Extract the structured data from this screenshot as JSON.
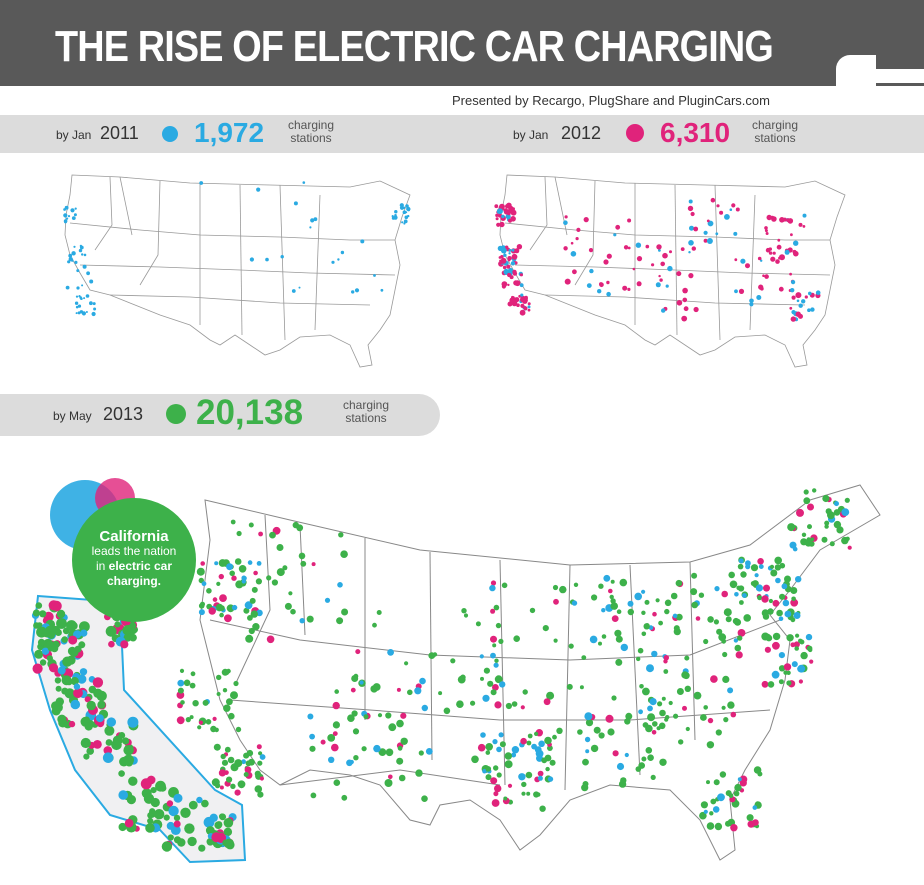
{
  "header": {
    "title": "THE RISE OF ELECTRIC CAR CHARGING",
    "presented_by": "Presented by Recargo, PlugShare and PluginCars.com"
  },
  "panels": [
    {
      "prefix": "by Jan",
      "year": "2011",
      "count": "1,972",
      "unit_line1": "charging",
      "unit_line2": "stations",
      "color": "#2aaae2"
    },
    {
      "prefix": "by Jan",
      "year": "2012",
      "count": "6,310",
      "unit_line1": "charging",
      "unit_line2": "stations",
      "color": "#e0237b"
    },
    {
      "prefix": "by May",
      "year": "2013",
      "count": "20,138",
      "unit_line1": "charging",
      "unit_line2": "stations",
      "color": "#3db14a"
    }
  ],
  "callout": {
    "title": "California",
    "line1": "leads the nation",
    "line2_plain": "in",
    "line2_bold": "electric car",
    "line3": "charging."
  },
  "colors": {
    "header_bg": "#595959",
    "band": "#dcdcdc",
    "map_lines": "#888888"
  }
}
